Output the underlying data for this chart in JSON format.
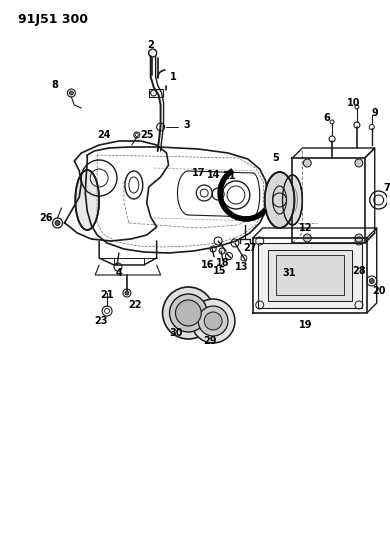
{
  "title": "91J51 300",
  "bg_color": "#ffffff",
  "line_color": "#1a1a1a",
  "fig_width": 3.9,
  "fig_height": 5.33,
  "dpi": 100
}
